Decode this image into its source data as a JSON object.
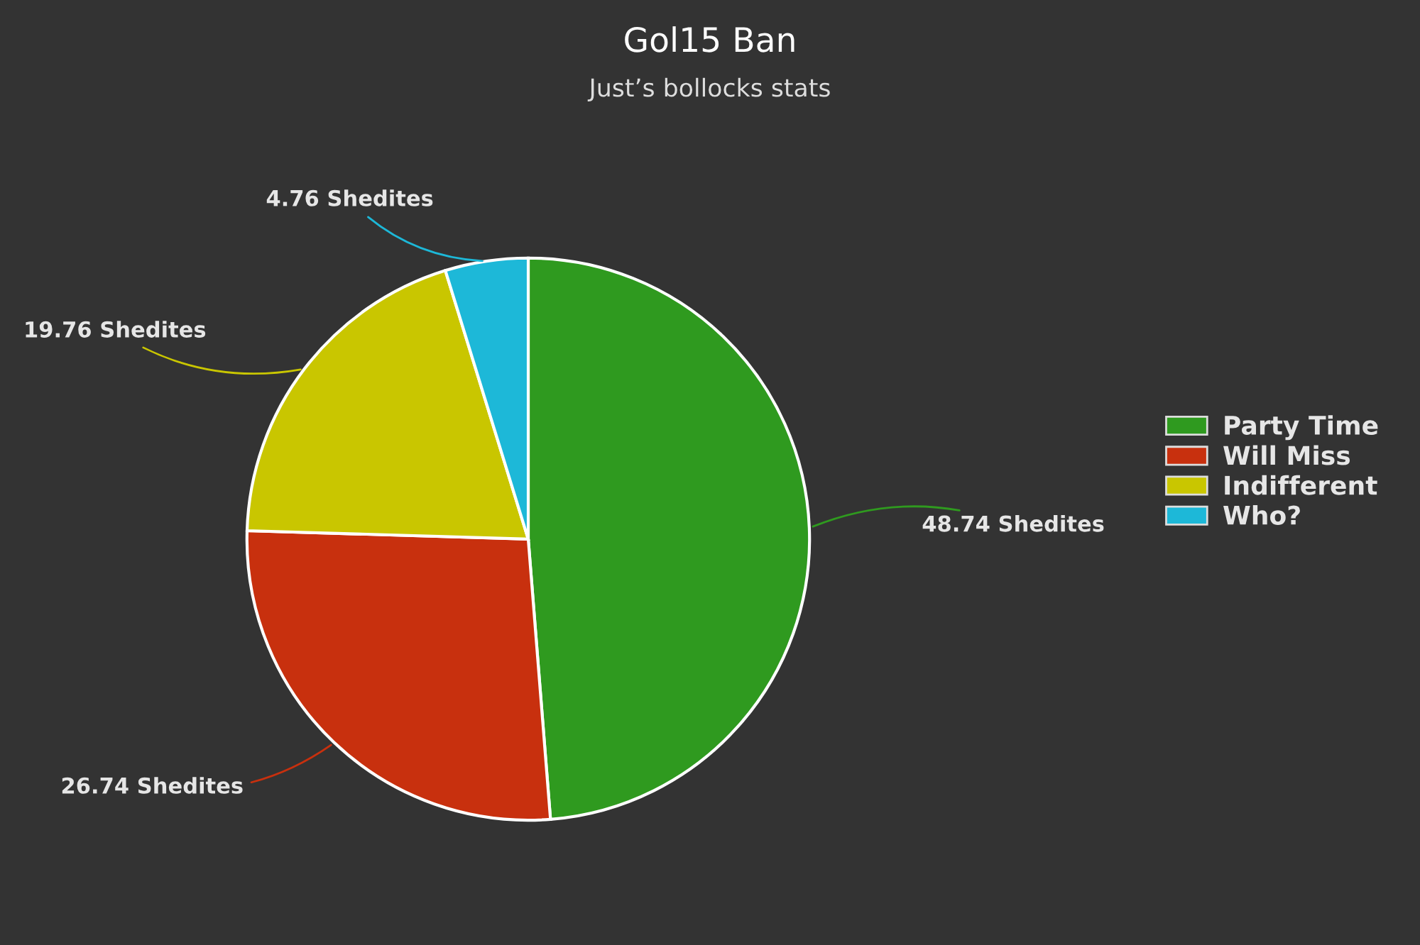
{
  "chart_data": {
    "type": "pie",
    "title": "Gol15 Ban",
    "subtitle": "Just’s bollocks stats",
    "categories": [
      "Party Time",
      "Will Miss",
      "Indifferent",
      "Who?"
    ],
    "values": [
      48.74,
      26.74,
      19.76,
      4.76
    ],
    "colors": [
      "#2f9a1f",
      "#c8300e",
      "#c9c600",
      "#1db8d8"
    ],
    "value_labels": [
      "48.74 Shedites",
      "26.74 Shedites",
      "19.76 Shedites",
      "4.76 Shedites"
    ],
    "legend": "right"
  }
}
